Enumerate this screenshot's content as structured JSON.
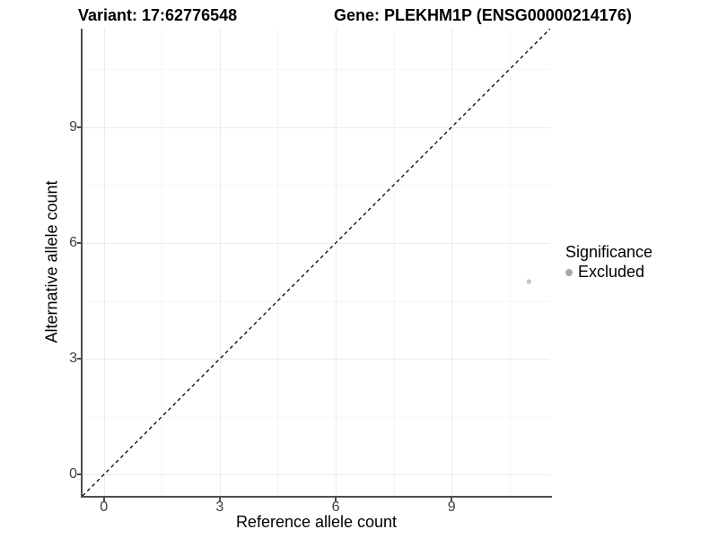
{
  "figure": {
    "title_variant": "Variant: 17:62776548",
    "title_gene": "Gene: PLEKHM1P (ENSG00000214176)"
  },
  "axes": {
    "x_label": "Reference allele count",
    "y_label": "Alternative allele count"
  },
  "legend": {
    "title": "Significance",
    "items": [
      {
        "label": "Excluded",
        "color": "#a9a9a9"
      }
    ]
  },
  "chart_data": {
    "type": "scatter",
    "title_left": "Variant: 17:62776548",
    "title_right": "Gene: PLEKHM1P (ENSG00000214176)",
    "xlabel": "Reference allele count",
    "ylabel": "Alternative allele count",
    "xlim": [
      -0.55,
      11.55
    ],
    "ylim": [
      -0.55,
      11.55
    ],
    "x_ticks": [
      0,
      3,
      6,
      9
    ],
    "y_ticks": [
      0,
      3,
      6,
      9
    ],
    "x_minor_ticks": [
      1.5,
      4.5,
      7.5,
      10.5
    ],
    "y_minor_ticks": [
      1.5,
      4.5,
      7.5,
      10.5
    ],
    "grid": "major+minor",
    "legend_position": "right",
    "identity_line": {
      "slope": 1,
      "intercept": 0,
      "style": "dashed",
      "color": "#000000"
    },
    "series": [
      {
        "name": "Excluded",
        "color": "#c5c5c5",
        "point_radius": 2.7,
        "points": [
          {
            "x": 11,
            "y": 5
          }
        ]
      }
    ]
  },
  "colors": {
    "background": "#ffffff",
    "axis_line": "#4d4d4d",
    "tick_label": "#404040",
    "grid_major": "#ebebeb",
    "grid_minor": "#f5f5f5",
    "legend_dot": "#a9a9a9"
  }
}
